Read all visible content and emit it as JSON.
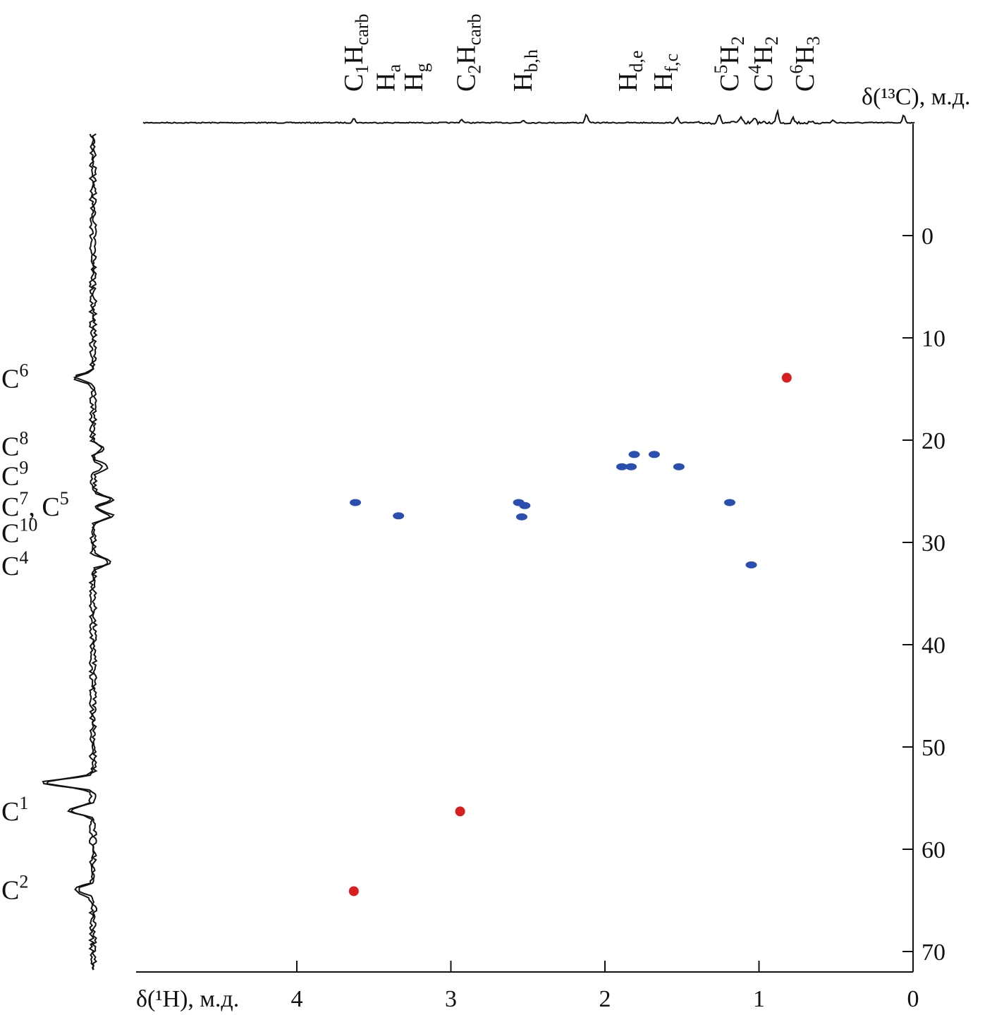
{
  "chart_data": {
    "type": "heatmap",
    "subtype": "2D HSQC NMR spectrum with 1D projections",
    "xlabel": "δ(¹H), м.д.",
    "ylabel": "δ(¹³C), м.д.",
    "xlim": [
      5.05,
      0
    ],
    "ylim": [
      -11,
      72
    ],
    "x_ticks": [
      4,
      3,
      2,
      1,
      0
    ],
    "y_ticks": [
      0,
      10,
      20,
      30,
      40,
      50,
      60,
      70
    ],
    "grid": false,
    "colors": {
      "positive": "#d81e1e",
      "negative": "#2a4fb0",
      "line": "#111111"
    },
    "cross_peaks": [
      {
        "h": 0.82,
        "c": 13.9,
        "phase": "positive"
      },
      {
        "h": 2.94,
        "c": 56.3,
        "phase": "positive"
      },
      {
        "h": 3.63,
        "c": 64.1,
        "phase": "positive"
      },
      {
        "h": 3.62,
        "c": 26.1,
        "phase": "negative"
      },
      {
        "h": 3.34,
        "c": 27.4,
        "phase": "negative"
      },
      {
        "h": 2.56,
        "c": 26.1,
        "phase": "negative"
      },
      {
        "h": 2.52,
        "c": 26.4,
        "phase": "negative"
      },
      {
        "h": 2.54,
        "c": 27.5,
        "phase": "negative"
      },
      {
        "h": 1.81,
        "c": 21.4,
        "phase": "negative"
      },
      {
        "h": 1.68,
        "c": 21.4,
        "phase": "negative"
      },
      {
        "h": 1.89,
        "c": 22.6,
        "phase": "negative"
      },
      {
        "h": 1.83,
        "c": 22.6,
        "phase": "negative"
      },
      {
        "h": 1.52,
        "c": 22.6,
        "phase": "negative"
      },
      {
        "h": 1.19,
        "c": 26.1,
        "phase": "negative"
      },
      {
        "h": 1.05,
        "c": 32.2,
        "phase": "negative"
      }
    ],
    "h_projection_peaks": [
      {
        "h": 3.63,
        "height": 0.5
      },
      {
        "h": 2.93,
        "height": 0.4
      },
      {
        "h": 2.53,
        "height": 0.3
      },
      {
        "h": 2.12,
        "height": 1.0
      },
      {
        "h": 1.53,
        "height": 0.6
      },
      {
        "h": 1.26,
        "height": 1.0
      },
      {
        "h": 1.12,
        "height": 0.6
      },
      {
        "h": 1.03,
        "height": 0.7
      },
      {
        "h": 0.88,
        "height": 1.3
      },
      {
        "h": 0.78,
        "height": 0.6
      },
      {
        "h": 0.52,
        "height": 0.3
      },
      {
        "h": 0.06,
        "height": 0.9
      }
    ],
    "c_projection_peaks": [
      {
        "c": 13.9,
        "height": -1.0
      },
      {
        "c": 20.8,
        "height": 0.5
      },
      {
        "c": 22.6,
        "height": 0.7
      },
      {
        "c": 25.8,
        "height": 1.1
      },
      {
        "c": 27.4,
        "height": 1.0
      },
      {
        "c": 31.9,
        "height": 1.0
      },
      {
        "c": 53.5,
        "height": -2.8
      },
      {
        "c": 56.2,
        "height": -1.4
      },
      {
        "c": 64.0,
        "height": -1.0
      }
    ],
    "h_labels": [
      {
        "h": 3.63,
        "parts": [
          [
            "C",
            ""
          ],
          [
            "1",
            "sub"
          ],
          [
            "H",
            ""
          ],
          [
            "carb",
            "sub"
          ]
        ]
      },
      {
        "h": 3.42,
        "parts": [
          [
            "H",
            ""
          ],
          [
            "a",
            "sub"
          ]
        ]
      },
      {
        "h": 3.24,
        "parts": [
          [
            "H",
            ""
          ],
          [
            "g",
            "sub"
          ]
        ]
      },
      {
        "h": 2.9,
        "parts": [
          [
            "C",
            ""
          ],
          [
            "2",
            "sub"
          ],
          [
            "H",
            ""
          ],
          [
            "carb",
            "sub"
          ]
        ]
      },
      {
        "h": 2.53,
        "parts": [
          [
            "H",
            ""
          ],
          [
            "b,h",
            "sub"
          ]
        ]
      },
      {
        "h": 1.85,
        "parts": [
          [
            "H",
            ""
          ],
          [
            "d,e",
            "sub"
          ]
        ]
      },
      {
        "h": 1.62,
        "parts": [
          [
            "H",
            ""
          ],
          [
            "f,c",
            "sub"
          ]
        ]
      },
      {
        "h": 1.19,
        "parts": [
          [
            "C",
            ""
          ],
          [
            "5",
            "sup"
          ],
          [
            "H",
            ""
          ],
          [
            "2",
            "sub"
          ]
        ]
      },
      {
        "h": 0.97,
        "parts": [
          [
            "C",
            ""
          ],
          [
            "4",
            "sup"
          ],
          [
            "H",
            ""
          ],
          [
            "2",
            "sub"
          ]
        ]
      },
      {
        "h": 0.7,
        "parts": [
          [
            "C",
            ""
          ],
          [
            "6",
            "sup"
          ],
          [
            "H",
            ""
          ],
          [
            "3",
            "sub"
          ]
        ]
      }
    ],
    "c_labels": [
      {
        "c": 13.9,
        "parts": [
          [
            "C",
            ""
          ],
          [
            "6",
            "sup"
          ]
        ]
      },
      {
        "c": 20.5,
        "parts": [
          [
            "C",
            ""
          ],
          [
            "8",
            "sup"
          ]
        ]
      },
      {
        "c": 23.4,
        "parts": [
          [
            "C",
            ""
          ],
          [
            "9",
            "sup"
          ]
        ]
      },
      {
        "c": 26.4,
        "parts": [
          [
            "C",
            ""
          ],
          [
            "7",
            "sup"
          ],
          [
            ", C",
            ""
          ],
          [
            "5",
            "sup"
          ]
        ]
      },
      {
        "c": 29.0,
        "parts": [
          [
            "C",
            ""
          ],
          [
            "10",
            "sup"
          ]
        ]
      },
      {
        "c": 32.2,
        "parts": [
          [
            "C",
            ""
          ],
          [
            "4",
            "sup"
          ]
        ]
      },
      {
        "c": 56.2,
        "parts": [
          [
            "C",
            ""
          ],
          [
            "1",
            "sup"
          ]
        ]
      },
      {
        "c": 63.9,
        "parts": [
          [
            "C",
            ""
          ],
          [
            "2",
            "sup"
          ]
        ]
      }
    ]
  }
}
